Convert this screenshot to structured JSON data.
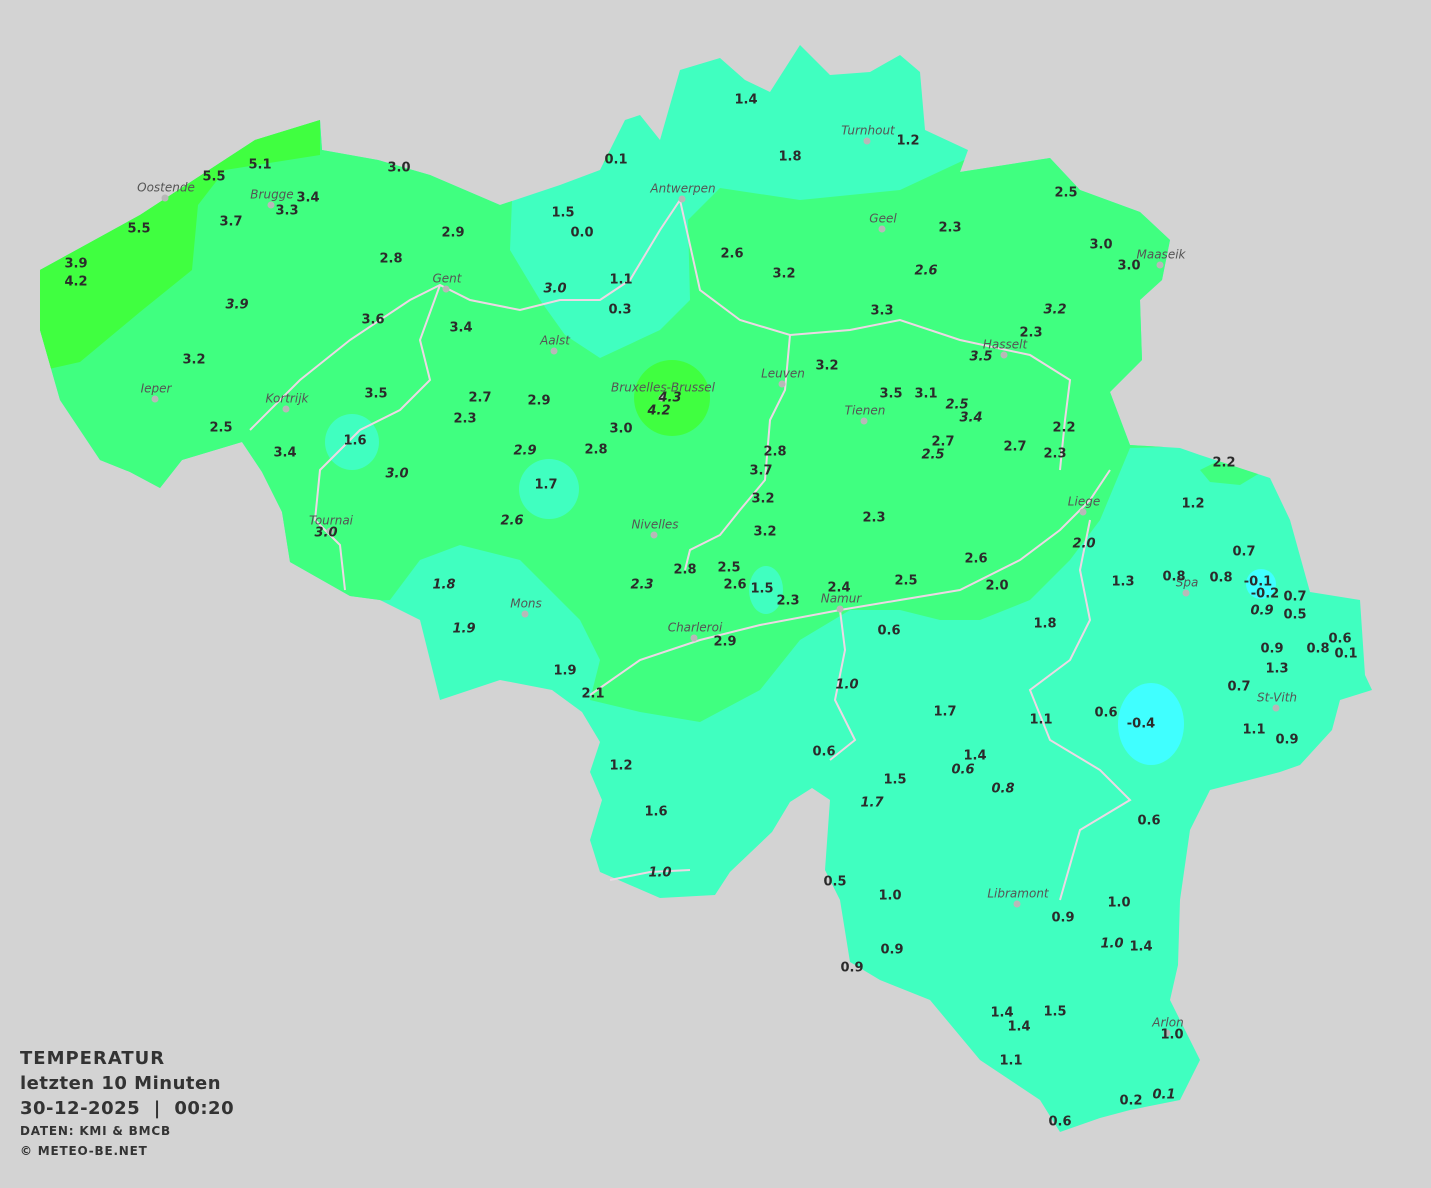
{
  "legend": {
    "title": "TEMPERATUR",
    "period": "letzten 10 Minuten",
    "date": "30-12-2025",
    "separator": "|",
    "time": "00:20",
    "source": "DATEN: KMI & BMCB",
    "copyright": "© METEO-BE.NET"
  },
  "colors": {
    "background": "#d3d3d3",
    "temp_0_to_2": "#40ffc0",
    "temp_2_to_4": "#40ff80",
    "temp_above_4": "#40ff40",
    "temp_below_0": "#40ffff",
    "rivers": "#e8d8e0",
    "text": "#2b2b2b"
  },
  "cities": [
    {
      "name": "Turnhout"
    },
    {
      "name": "Antwerpen"
    },
    {
      "name": "Oostende"
    },
    {
      "name": "Brugge"
    },
    {
      "name": "Geel"
    },
    {
      "name": "Maaseik"
    },
    {
      "name": "Gent"
    },
    {
      "name": "Aalst"
    },
    {
      "name": "Hasselt"
    },
    {
      "name": "Leuven"
    },
    {
      "name": "Ieper"
    },
    {
      "name": "Bruxelles-Brussel"
    },
    {
      "name": "Tienen"
    },
    {
      "name": "Kortrijk"
    },
    {
      "name": "Liege"
    },
    {
      "name": "Tournai"
    },
    {
      "name": "Nivelles"
    },
    {
      "name": "Spa"
    },
    {
      "name": "Namur"
    },
    {
      "name": "Mons"
    },
    {
      "name": "Charleroi"
    },
    {
      "name": "St-Vith"
    },
    {
      "name": "Libramont"
    },
    {
      "name": "Arlon"
    }
  ],
  "stations": [
    {
      "value": "1.4",
      "italic": false
    },
    {
      "value": "1.8",
      "italic": false
    },
    {
      "value": "1.2",
      "italic": false
    },
    {
      "value": "0.1",
      "italic": false
    },
    {
      "value": "3.0",
      "italic": false
    },
    {
      "value": "5.1",
      "italic": false
    },
    {
      "value": "5.5",
      "italic": false
    },
    {
      "value": "3.4",
      "italic": false
    },
    {
      "value": "3.3",
      "italic": false
    },
    {
      "value": "1.5",
      "italic": false
    },
    {
      "value": "0.0",
      "italic": false
    },
    {
      "value": "3.7",
      "italic": false
    },
    {
      "value": "5.5",
      "italic": false
    },
    {
      "value": "2.9",
      "italic": false
    },
    {
      "value": "2.3",
      "italic": false
    },
    {
      "value": "2.5",
      "italic": false
    },
    {
      "value": "3.0",
      "italic": false
    },
    {
      "value": "3.0",
      "italic": false
    },
    {
      "value": "2.6",
      "italic": false
    },
    {
      "value": "3.2",
      "italic": false
    },
    {
      "value": "2.6",
      "italic": true
    },
    {
      "value": "3.9",
      "italic": false
    },
    {
      "value": "4.2",
      "italic": false
    },
    {
      "value": "2.8",
      "italic": false
    },
    {
      "value": "1.1",
      "italic": false
    },
    {
      "value": "3.0",
      "italic": true
    },
    {
      "value": "0.3",
      "italic": false
    },
    {
      "value": "3.9",
      "italic": true
    },
    {
      "value": "3.6",
      "italic": false
    },
    {
      "value": "3.4",
      "italic": false
    },
    {
      "value": "3.3",
      "italic": false
    },
    {
      "value": "3.2",
      "italic": true
    },
    {
      "value": "2.3",
      "italic": false
    },
    {
      "value": "3.5",
      "italic": true
    },
    {
      "value": "3.2",
      "italic": false
    },
    {
      "value": "3.2",
      "italic": false
    },
    {
      "value": "3.5",
      "italic": false
    },
    {
      "value": "2.7",
      "italic": false
    },
    {
      "value": "2.9",
      "italic": false
    },
    {
      "value": "4.3",
      "italic": true
    },
    {
      "value": "4.2",
      "italic": true
    },
    {
      "value": "3.5",
      "italic": false
    },
    {
      "value": "3.1",
      "italic": false
    },
    {
      "value": "2.5",
      "italic": true
    },
    {
      "value": "3.4",
      "italic": true
    },
    {
      "value": "2.5",
      "italic": false
    },
    {
      "value": "2.3",
      "italic": false
    },
    {
      "value": "3.0",
      "italic": false
    },
    {
      "value": "1.6",
      "italic": false
    },
    {
      "value": "2.2",
      "italic": false
    },
    {
      "value": "3.4",
      "italic": false
    },
    {
      "value": "2.9",
      "italic": true
    },
    {
      "value": "2.8",
      "italic": false
    },
    {
      "value": "2.8",
      "italic": false
    },
    {
      "value": "2.7",
      "italic": false
    },
    {
      "value": "2.5",
      "italic": true
    },
    {
      "value": "2.7",
      "italic": false
    },
    {
      "value": "2.3",
      "italic": false
    },
    {
      "value": "2.2",
      "italic": false
    },
    {
      "value": "3.0",
      "italic": true
    },
    {
      "value": "3.7",
      "italic": false
    },
    {
      "value": "1.7",
      "italic": false
    },
    {
      "value": "3.2",
      "italic": false
    },
    {
      "value": "1.2",
      "italic": false
    },
    {
      "value": "2.6",
      "italic": true
    },
    {
      "value": "3.0",
      "italic": true
    },
    {
      "value": "3.2",
      "italic": false
    },
    {
      "value": "2.3",
      "italic": false
    },
    {
      "value": "2.0",
      "italic": true
    },
    {
      "value": "0.7",
      "italic": false
    },
    {
      "value": "2.5",
      "italic": false
    },
    {
      "value": "2.8",
      "italic": false
    },
    {
      "value": "2.6",
      "italic": false
    },
    {
      "value": "1.3",
      "italic": false
    },
    {
      "value": "0.8",
      "italic": false
    },
    {
      "value": "0.8",
      "italic": false
    },
    {
      "value": "-0.1",
      "italic": false
    },
    {
      "value": "-0.2",
      "italic": false
    },
    {
      "value": "0.7",
      "italic": false
    },
    {
      "value": "0.5",
      "italic": false
    },
    {
      "value": "0.9",
      "italic": true
    },
    {
      "value": "2.0",
      "italic": false
    },
    {
      "value": "2.5",
      "italic": false
    },
    {
      "value": "1.8",
      "italic": true
    },
    {
      "value": "2.3",
      "italic": true
    },
    {
      "value": "2.6",
      "italic": false
    },
    {
      "value": "1.5",
      "italic": false
    },
    {
      "value": "2.4",
      "italic": false
    },
    {
      "value": "2.3",
      "italic": false
    },
    {
      "value": "1.8",
      "italic": false
    },
    {
      "value": "1.9",
      "italic": true
    },
    {
      "value": "0.6",
      "italic": false
    },
    {
      "value": "2.9",
      "italic": false
    },
    {
      "value": "0.9",
      "italic": false
    },
    {
      "value": "0.8",
      "italic": false
    },
    {
      "value": "0.6",
      "italic": false
    },
    {
      "value": "0.1",
      "italic": false
    },
    {
      "value": "1.3",
      "italic": false
    },
    {
      "value": "1.9",
      "italic": false
    },
    {
      "value": "1.0",
      "italic": true
    },
    {
      "value": "0.7",
      "italic": false
    },
    {
      "value": "2.1",
      "italic": false
    },
    {
      "value": "1.7",
      "italic": false
    },
    {
      "value": "1.1",
      "italic": false
    },
    {
      "value": "0.6",
      "italic": false
    },
    {
      "value": "-0.4",
      "italic": false
    },
    {
      "value": "1.1",
      "italic": false
    },
    {
      "value": "0.9",
      "italic": false
    },
    {
      "value": "0.6",
      "italic": false
    },
    {
      "value": "1.4",
      "italic": false
    },
    {
      "value": "0.6",
      "italic": true
    },
    {
      "value": "1.2",
      "italic": false
    },
    {
      "value": "1.5",
      "italic": false
    },
    {
      "value": "0.8",
      "italic": true
    },
    {
      "value": "1.7",
      "italic": true
    },
    {
      "value": "1.6",
      "italic": false
    },
    {
      "value": "0.6",
      "italic": false
    },
    {
      "value": "1.0",
      "italic": true
    },
    {
      "value": "0.5",
      "italic": false
    },
    {
      "value": "1.0",
      "italic": false
    },
    {
      "value": "0.9",
      "italic": false
    },
    {
      "value": "1.0",
      "italic": false
    },
    {
      "value": "1.0",
      "italic": true
    },
    {
      "value": "1.4",
      "italic": false
    },
    {
      "value": "0.9",
      "italic": false
    },
    {
      "value": "0.9",
      "italic": false
    },
    {
      "value": "1.4",
      "italic": false
    },
    {
      "value": "1.5",
      "italic": false
    },
    {
      "value": "1.4",
      "italic": false
    },
    {
      "value": "1.0",
      "italic": false
    },
    {
      "value": "1.1",
      "italic": false
    },
    {
      "value": "0.2",
      "italic": false
    },
    {
      "value": "0.1",
      "italic": true
    },
    {
      "value": "0.6",
      "italic": false
    }
  ]
}
